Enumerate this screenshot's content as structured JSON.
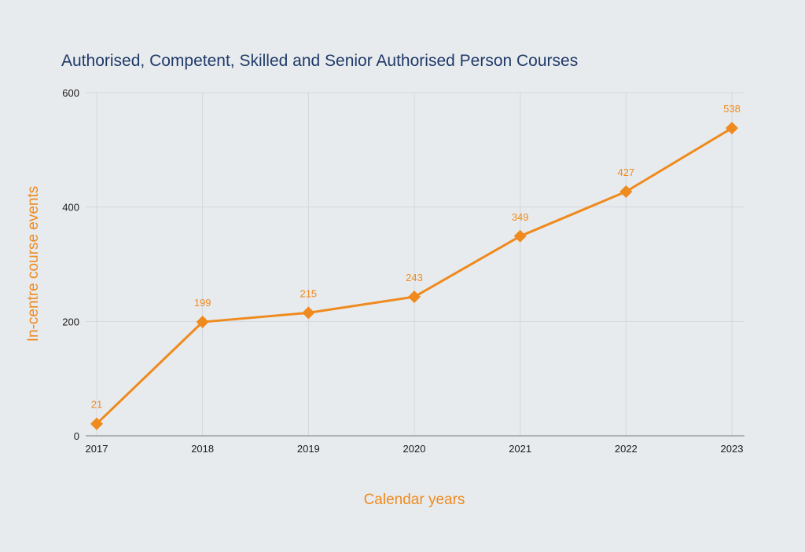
{
  "chart_data": {
    "type": "line",
    "title": "Authorised, Competent, Skilled and Senior Authorised Person Courses",
    "xlabel": "Calendar years",
    "ylabel": "In-centre course events",
    "categories": [
      "2017",
      "2018",
      "2019",
      "2020",
      "2021",
      "2022",
      "2023"
    ],
    "series": [
      {
        "values": [
          21,
          199,
          215,
          243,
          349,
          427,
          538
        ]
      }
    ],
    "data_labels": [
      "21",
      "199",
      "215",
      "243",
      "349",
      "427",
      "538"
    ],
    "ylim": [
      0,
      600
    ],
    "yticks": [
      0,
      200,
      400,
      600
    ],
    "grid": true,
    "legend": "none",
    "marker": "diamond",
    "colors": {
      "line": "#ef8a1e",
      "title": "#1f3a68",
      "axis_title": "#ef8a1e",
      "grid": "#d3d7dc",
      "background": "#e8ebee"
    }
  }
}
